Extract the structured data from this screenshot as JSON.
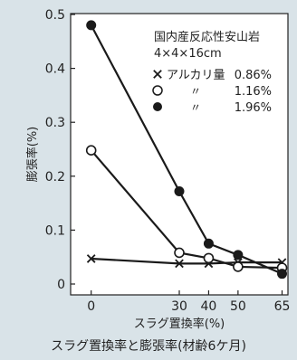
{
  "chart_data": {
    "type": "line",
    "x": [
      0,
      30,
      40,
      50,
      65
    ],
    "xticks": [
      "0",
      "30",
      "40",
      "50",
      "65"
    ],
    "yticks": [
      "0",
      "0.1",
      "0.2",
      "0.3",
      "0.4",
      "0.5"
    ],
    "ylim": [
      0,
      0.5
    ],
    "xlim": [
      -7,
      67
    ],
    "xlabel": "スラグ置換率(%)",
    "ylabel": "膨張率(%)",
    "caption": "スラグ置換率と膨張率(材齢6ケ月)",
    "annotation": {
      "line1": "国内産反応性安山岩",
      "line2": "4×4×16cm"
    },
    "legend": [
      {
        "marker": "×",
        "label": "アルカリ量",
        "value": "0.86%"
      },
      {
        "marker": "○",
        "label": "〃",
        "value": "1.16%"
      },
      {
        "marker": "●",
        "label": "〃",
        "value": "1.96%"
      }
    ],
    "series": [
      {
        "marker": "cross",
        "values": [
          0.047,
          0.038,
          0.038,
          0.04,
          0.04
        ]
      },
      {
        "marker": "open-circle",
        "values": [
          0.248,
          0.058,
          0.048,
          0.032,
          0.03
        ]
      },
      {
        "marker": "filled-circle",
        "values": [
          0.48,
          0.172,
          0.075,
          0.054,
          0.019
        ]
      }
    ],
    "grid": false
  },
  "colors": {
    "background": "#d9e3e8",
    "plot_background": "#ffffff",
    "line": "#1a1a1a"
  }
}
